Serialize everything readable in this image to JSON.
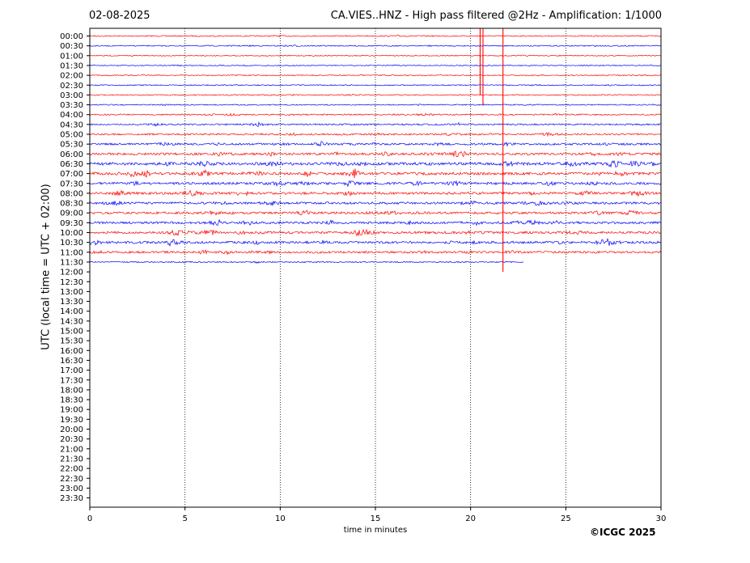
{
  "header": {
    "date": "02-08-2025",
    "title": "CA.VIES..HNZ - High pass filtered @2Hz - Amplification: 1/1000"
  },
  "footer": {
    "copyright": "©ICGC 2025"
  },
  "chart_data": {
    "type": "line",
    "title": "CA.VIES..HNZ - High pass filtered @2Hz - Amplification: 1/1000",
    "xlabel": "time in minutes",
    "ylabel": "UTC (local time = UTC + 02:00)",
    "xlim": [
      0,
      30
    ],
    "x_ticks": [
      0,
      5,
      10,
      15,
      20,
      25,
      30
    ],
    "x_tick_labels": [
      "0",
      "5",
      "10",
      "15",
      "20",
      "25",
      "30"
    ],
    "vertical_gridlines": [
      5,
      10,
      15,
      20,
      25
    ],
    "grid": "dotted vertical",
    "y_tick_labels": [
      "00:00",
      "00:30",
      "01:00",
      "01:30",
      "02:00",
      "02:30",
      "03:00",
      "03:30",
      "04:00",
      "04:30",
      "05:00",
      "05:30",
      "06:00",
      "06:30",
      "07:00",
      "07:30",
      "08:00",
      "08:30",
      "09:00",
      "09:30",
      "10:00",
      "10:30",
      "11:00",
      "11:30",
      "12:00",
      "12:30",
      "13:00",
      "13:30",
      "14:00",
      "14:30",
      "15:00",
      "15:30",
      "16:00",
      "16:30",
      "17:00",
      "17:30",
      "18:00",
      "18:30",
      "19:00",
      "19:30",
      "20:00",
      "20:30",
      "21:00",
      "21:30",
      "22:00",
      "22:30",
      "23:00",
      "23:30"
    ],
    "trace_colors": [
      "#ff0000",
      "#0000ff"
    ],
    "trace_activity": [
      0.15,
      0.15,
      0.1,
      0.1,
      0.12,
      0.12,
      0.14,
      0.15,
      0.25,
      0.3,
      0.35,
      0.45,
      0.55,
      0.75,
      0.7,
      0.6,
      0.6,
      0.55,
      0.55,
      0.55,
      0.6,
      0.6,
      0.5,
      0.2
    ],
    "last_trace_end_minute": 22.8,
    "spikes": [
      {
        "minute": 20.5,
        "from": "00:00",
        "to": "03:00"
      },
      {
        "minute": 20.65,
        "from": "00:00",
        "to": "03:30"
      },
      {
        "minute": 21.7,
        "from": "00:00",
        "to": "12:00"
      }
    ]
  }
}
